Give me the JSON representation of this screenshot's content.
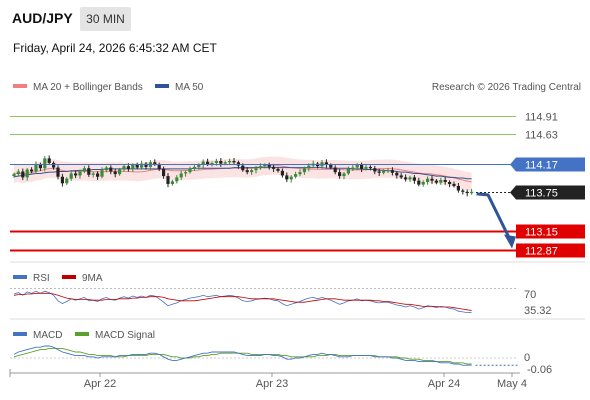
{
  "header": {
    "symbol": "AUD/JPY",
    "timeframe": "30 MIN",
    "datetime": "Friday, April 24, 2026 6:45:32 AM CET"
  },
  "colors": {
    "bollinger": "#f08080",
    "ma50": "#2f5597",
    "resistance": "#8fc561",
    "pivot": "#4472c4",
    "support": "#e00000",
    "price_tag": "#222222",
    "rsi": "#4472c4",
    "rsi_ma": "#c00000",
    "macd": "#4472c4",
    "macd_signal": "#5aa02c",
    "arrow": "#2f5597"
  },
  "chart_data": [
    {
      "type": "candlestick",
      "panel": "price",
      "legend": [
        "MA 20 + Bollinger Bands",
        "MA 50"
      ],
      "watermark": "Research © 2026 Trading Central",
      "levels": [
        {
          "label": "114.91",
          "role": "resistance"
        },
        {
          "label": "114.63",
          "role": "resistance"
        },
        {
          "label": "114.17",
          "role": "pivot"
        },
        {
          "label": "113.75",
          "role": "last price"
        },
        {
          "label": "113.15",
          "role": "support"
        },
        {
          "label": "112.87",
          "role": "support"
        }
      ],
      "x_ticks": [
        "Apr 22",
        "Apr 23",
        "Apr 24",
        "May 4"
      ],
      "ylim": [
        112.68,
        115.15
      ],
      "close": [
        114.02,
        114.06,
        113.97,
        114.09,
        114.06,
        114.17,
        114.11,
        114.26,
        114.19,
        114.12,
        113.98,
        113.88,
        113.95,
        114.03,
        114.0,
        114.06,
        114.11,
        114.01,
        114.03,
        113.98,
        114.08,
        114.12,
        114.06,
        114.02,
        114.09,
        114.14,
        114.1,
        114.16,
        114.12,
        114.18,
        114.13,
        114.2,
        114.17,
        114.1,
        113.99,
        113.87,
        113.91,
        113.97,
        114.03,
        114.05,
        114.1,
        114.13,
        114.16,
        114.21,
        114.17,
        114.19,
        114.22,
        114.18,
        114.2,
        114.22,
        114.2,
        114.15,
        114.08,
        114.05,
        114.08,
        114.11,
        114.14,
        114.16,
        114.13,
        114.1,
        114.07,
        114.0,
        113.94,
        113.98,
        114.02,
        114.05,
        114.11,
        114.15,
        114.18,
        114.14,
        114.2,
        114.16,
        114.12,
        114.05,
        113.99,
        114.03,
        114.1,
        114.12,
        114.16,
        114.1,
        114.13,
        114.11,
        114.06,
        114.04,
        114.07,
        114.08,
        114.04,
        114.0,
        113.97,
        113.94,
        113.97,
        113.92,
        113.86,
        113.9,
        113.95,
        113.92,
        113.89,
        113.93,
        113.9,
        113.87,
        113.84,
        113.77,
        113.75,
        113.73,
        113.75
      ],
      "ma50": [
        113.98,
        113.99,
        114.0,
        114.01,
        114.02,
        114.03,
        114.03,
        114.04,
        114.05,
        114.05,
        114.06,
        114.06,
        114.06,
        114.07,
        114.07,
        114.08,
        114.08,
        114.08,
        114.09,
        114.09,
        114.09,
        114.1,
        114.1,
        114.1,
        114.1,
        114.1,
        114.1,
        114.1,
        114.1,
        114.1,
        114.1,
        114.1,
        114.1,
        114.1,
        114.1,
        114.1,
        114.1,
        114.1,
        114.1,
        114.1,
        114.1,
        114.11,
        114.11,
        114.11,
        114.11,
        114.11,
        114.11,
        114.11,
        114.11,
        114.11,
        114.12,
        114.12,
        114.12,
        114.12,
        114.12,
        114.12,
        114.12,
        114.12,
        114.12,
        114.12,
        114.12,
        114.12,
        114.12,
        114.12,
        114.12,
        114.12,
        114.12,
        114.12,
        114.12,
        114.12,
        114.12,
        114.11,
        114.11,
        114.11,
        114.11,
        114.11,
        114.11,
        114.1,
        114.1,
        114.1,
        114.09,
        114.09,
        114.09,
        114.08,
        114.08,
        114.07,
        114.07,
        114.06,
        114.05,
        114.05,
        114.04,
        114.03,
        114.03,
        114.02,
        114.01,
        114.0,
        113.99,
        113.99,
        113.98,
        113.97,
        113.97,
        113.96,
        113.96,
        113.95,
        113.95
      ],
      "bb_width": 0.14
    },
    {
      "type": "line",
      "panel": "rsi",
      "series": [
        {
          "name": "RSI"
        },
        {
          "name": "9MA"
        }
      ],
      "y_ticks": [
        "70"
      ],
      "last_value": "35.32",
      "rsi": [
        62,
        64,
        60,
        65,
        63,
        66,
        63,
        66,
        64,
        60,
        52,
        48,
        51,
        55,
        53,
        55,
        57,
        52,
        53,
        51,
        55,
        57,
        54,
        53,
        56,
        58,
        56,
        59,
        57,
        59,
        57,
        60,
        59,
        55,
        50,
        45,
        47,
        49,
        52,
        54,
        56,
        57,
        58,
        60,
        58,
        59,
        60,
        58,
        59,
        60,
        59,
        56,
        52,
        51,
        52,
        54,
        55,
        56,
        55,
        53,
        52,
        48,
        45,
        47,
        49,
        51,
        54,
        56,
        57,
        55,
        57,
        55,
        53,
        50,
        47,
        49,
        52,
        53,
        55,
        52,
        53,
        52,
        50,
        49,
        50,
        50,
        48,
        46,
        45,
        43,
        45,
        43,
        40,
        42,
        45,
        44,
        42,
        44,
        43,
        41,
        40,
        37,
        36,
        35,
        35.32
      ],
      "rsi_ma": [
        60,
        61,
        61,
        62,
        62,
        63,
        63,
        63,
        63,
        62,
        60,
        58,
        56,
        55,
        54,
        54,
        54,
        54,
        53,
        53,
        53,
        54,
        54,
        54,
        55,
        55,
        55,
        56,
        56,
        57,
        57,
        58,
        58,
        58,
        57,
        55,
        54,
        53,
        52,
        52,
        52,
        52,
        53,
        54,
        55,
        56,
        57,
        58,
        58,
        58,
        58,
        58,
        57,
        56,
        55,
        55,
        55,
        55,
        55,
        55,
        54,
        53,
        52,
        51,
        50,
        50,
        50,
        51,
        52,
        53,
        54,
        55,
        55,
        55,
        54,
        53,
        53,
        53,
        53,
        53,
        53,
        53,
        52,
        52,
        51,
        51,
        50,
        49,
        48,
        47,
        47,
        46,
        45,
        44,
        44,
        44,
        44,
        43,
        43,
        43,
        42,
        41,
        40,
        39,
        38
      ]
    },
    {
      "type": "line",
      "panel": "macd",
      "series": [
        {
          "name": "MACD"
        },
        {
          "name": "MACD Signal"
        }
      ],
      "y_ticks": [
        "0"
      ],
      "last_value": "-0.06",
      "macd": [
        0.03,
        0.05,
        0.06,
        0.07,
        0.08,
        0.09,
        0.09,
        0.1,
        0.1,
        0.09,
        0.07,
        0.05,
        0.04,
        0.03,
        0.02,
        0.02,
        0.02,
        0.01,
        0.01,
        0.0,
        0.01,
        0.01,
        0.01,
        0.01,
        0.02,
        0.02,
        0.02,
        0.03,
        0.03,
        0.03,
        0.03,
        0.04,
        0.04,
        0.03,
        0.01,
        -0.01,
        -0.02,
        -0.02,
        -0.01,
        0.0,
        0.01,
        0.02,
        0.03,
        0.04,
        0.04,
        0.05,
        0.05,
        0.05,
        0.05,
        0.05,
        0.05,
        0.04,
        0.03,
        0.02,
        0.02,
        0.02,
        0.02,
        0.03,
        0.03,
        0.02,
        0.02,
        0.01,
        -0.01,
        -0.01,
        0.0,
        0.0,
        0.01,
        0.02,
        0.03,
        0.03,
        0.04,
        0.03,
        0.03,
        0.02,
        0.01,
        0.01,
        0.01,
        0.02,
        0.02,
        0.02,
        0.02,
        0.02,
        0.01,
        0.01,
        0.01,
        0.01,
        0.0,
        0.0,
        -0.01,
        -0.02,
        -0.02,
        -0.02,
        -0.03,
        -0.03,
        -0.03,
        -0.03,
        -0.03,
        -0.04,
        -0.04,
        -0.04,
        -0.05,
        -0.05,
        -0.06,
        -0.06,
        -0.06
      ],
      "signal": [
        0.01,
        0.02,
        0.03,
        0.04,
        0.05,
        0.06,
        0.07,
        0.07,
        0.08,
        0.08,
        0.08,
        0.08,
        0.07,
        0.06,
        0.05,
        0.05,
        0.04,
        0.03,
        0.03,
        0.02,
        0.02,
        0.02,
        0.02,
        0.01,
        0.01,
        0.01,
        0.02,
        0.02,
        0.02,
        0.02,
        0.02,
        0.03,
        0.03,
        0.03,
        0.03,
        0.02,
        0.01,
        0.01,
        0.0,
        0.0,
        0.0,
        0.01,
        0.01,
        0.02,
        0.02,
        0.03,
        0.03,
        0.04,
        0.04,
        0.04,
        0.04,
        0.04,
        0.04,
        0.04,
        0.03,
        0.03,
        0.03,
        0.03,
        0.03,
        0.03,
        0.03,
        0.02,
        0.02,
        0.01,
        0.01,
        0.01,
        0.01,
        0.01,
        0.01,
        0.02,
        0.02,
        0.02,
        0.03,
        0.03,
        0.02,
        0.02,
        0.02,
        0.02,
        0.02,
        0.02,
        0.02,
        0.02,
        0.02,
        0.01,
        0.01,
        0.01,
        0.01,
        0.01,
        0.0,
        0.0,
        -0.01,
        -0.01,
        -0.01,
        -0.02,
        -0.02,
        -0.02,
        -0.03,
        -0.03,
        -0.03,
        -0.03,
        -0.04,
        -0.04,
        -0.04,
        -0.05,
        -0.05
      ]
    }
  ]
}
